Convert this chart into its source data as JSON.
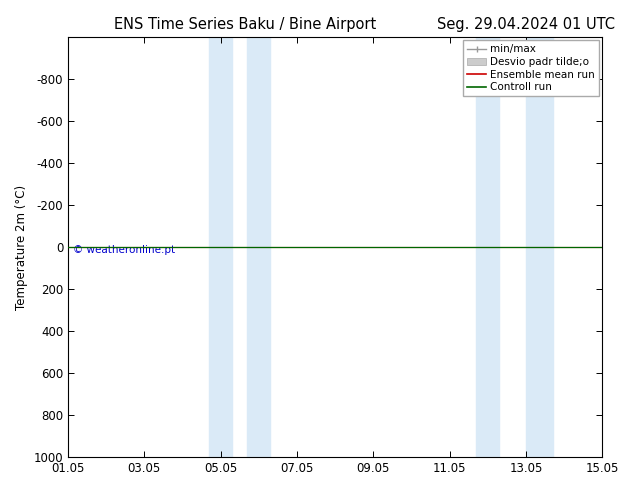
{
  "title_left": "ENS Time Series Baku / Bine Airport",
  "title_right": "Seg. 29.04.2024 01 UTC",
  "ylabel": "Temperature 2m (°C)",
  "ylim_bottom": 1000,
  "ylim_top": -1000,
  "yticks": [
    -800,
    -600,
    -400,
    -200,
    0,
    200,
    400,
    600,
    800,
    1000
  ],
  "xlim_start": 0,
  "xlim_end": 14,
  "xtick_labels": [
    "01.05",
    "03.05",
    "05.05",
    "07.05",
    "09.05",
    "11.05",
    "13.05",
    "15.05"
  ],
  "xtick_positions": [
    0,
    2,
    4,
    6,
    8,
    10,
    12,
    14
  ],
  "shaded_bands": [
    {
      "x_start": 3.7,
      "x_end": 4.3
    },
    {
      "x_start": 4.7,
      "x_end": 5.3
    },
    {
      "x_start": 10.7,
      "x_end": 11.3
    },
    {
      "x_start": 12.0,
      "x_end": 12.7
    }
  ],
  "band_color": "#daeaf7",
  "control_run_y": 0,
  "ensemble_mean_y": 0,
  "ensemble_mean_color": "#cc0000",
  "control_run_color": "#006600",
  "minmax_color": "#999999",
  "stddev_color": "#cccccc",
  "legend_entries": [
    "min/max",
    "Desvio padr tilde;o",
    "Ensemble mean run",
    "Controll run"
  ],
  "copyright_text": "© weatheronline.pt",
  "copyright_color": "#0000cc",
  "background_color": "#ffffff",
  "plot_bg_color": "#ffffff",
  "title_fontsize": 10.5,
  "tick_fontsize": 8.5,
  "ylabel_fontsize": 8.5,
  "legend_fontsize": 7.5
}
